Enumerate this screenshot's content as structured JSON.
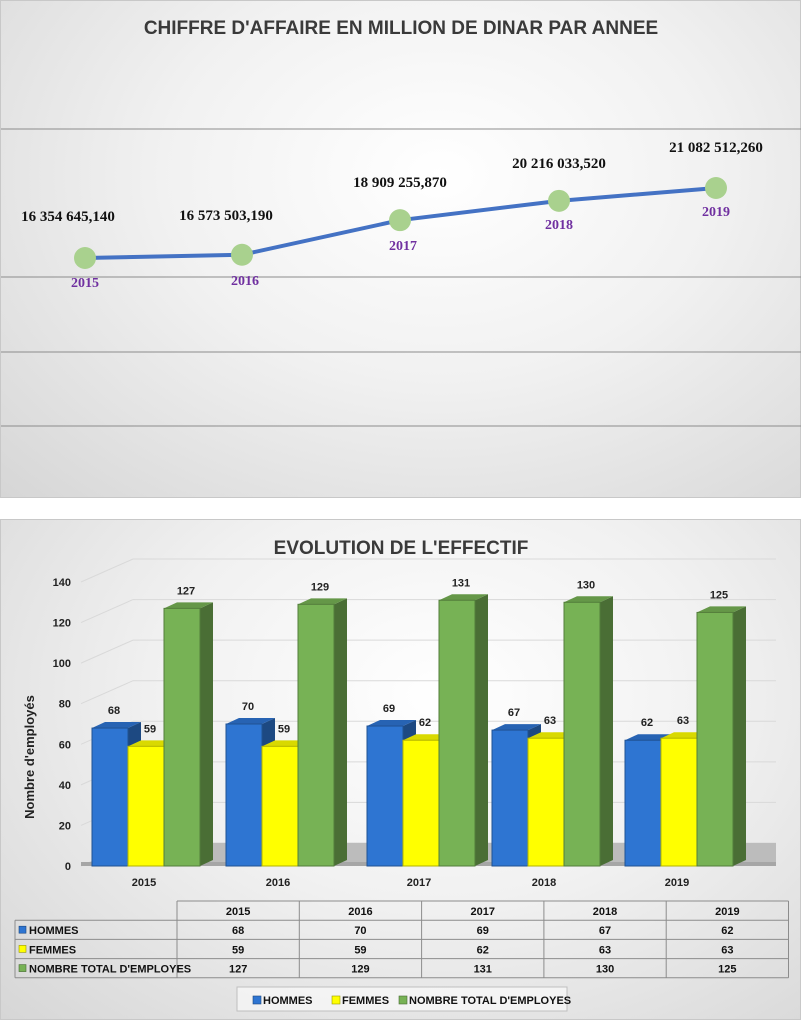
{
  "colors": {
    "line": "#4472c4",
    "marker": "#a9d18e",
    "year_label": "#7030a0",
    "hommes": "#2e75d2",
    "femmes": "#ffff00",
    "total": "#77b255"
  },
  "chart_data": [
    {
      "type": "line",
      "title": "CHIFFRE D'AFFAIRE EN MILLION DE DINAR PAR ANNEE",
      "x": [
        "2015",
        "2016",
        "2017",
        "2018",
        "2019"
      ],
      "values": [
        16354645.14,
        16573503.19,
        18909255.87,
        20216033.52,
        21082512.26
      ],
      "value_labels": [
        "16 354 645,140",
        "16 573 503,190",
        "18 909 255,870",
        "20 216 033,520",
        "21 082 512,260"
      ],
      "grid": true,
      "legend": "none"
    },
    {
      "type": "bar",
      "title": "EVOLUTION DE L'EFFECTIF",
      "categories": [
        "2015",
        "2016",
        "2017",
        "2018",
        "2019"
      ],
      "ylabel": "Nombre d'employés",
      "xlabel": "",
      "ylim": [
        0,
        140
      ],
      "yticks": [
        "0",
        "20",
        "40",
        "60",
        "80",
        "100",
        "120",
        "140"
      ],
      "series": [
        {
          "name": "HOMMES",
          "values": [
            68,
            70,
            69,
            67,
            62
          ]
        },
        {
          "name": "FEMMES",
          "values": [
            59,
            59,
            62,
            63,
            63
          ]
        },
        {
          "name": "NOMBRE TOTAL D'EMPLOYES",
          "values": [
            127,
            129,
            131,
            130,
            125
          ]
        }
      ],
      "grid": true,
      "legend": "bottom",
      "data_table": true
    }
  ]
}
